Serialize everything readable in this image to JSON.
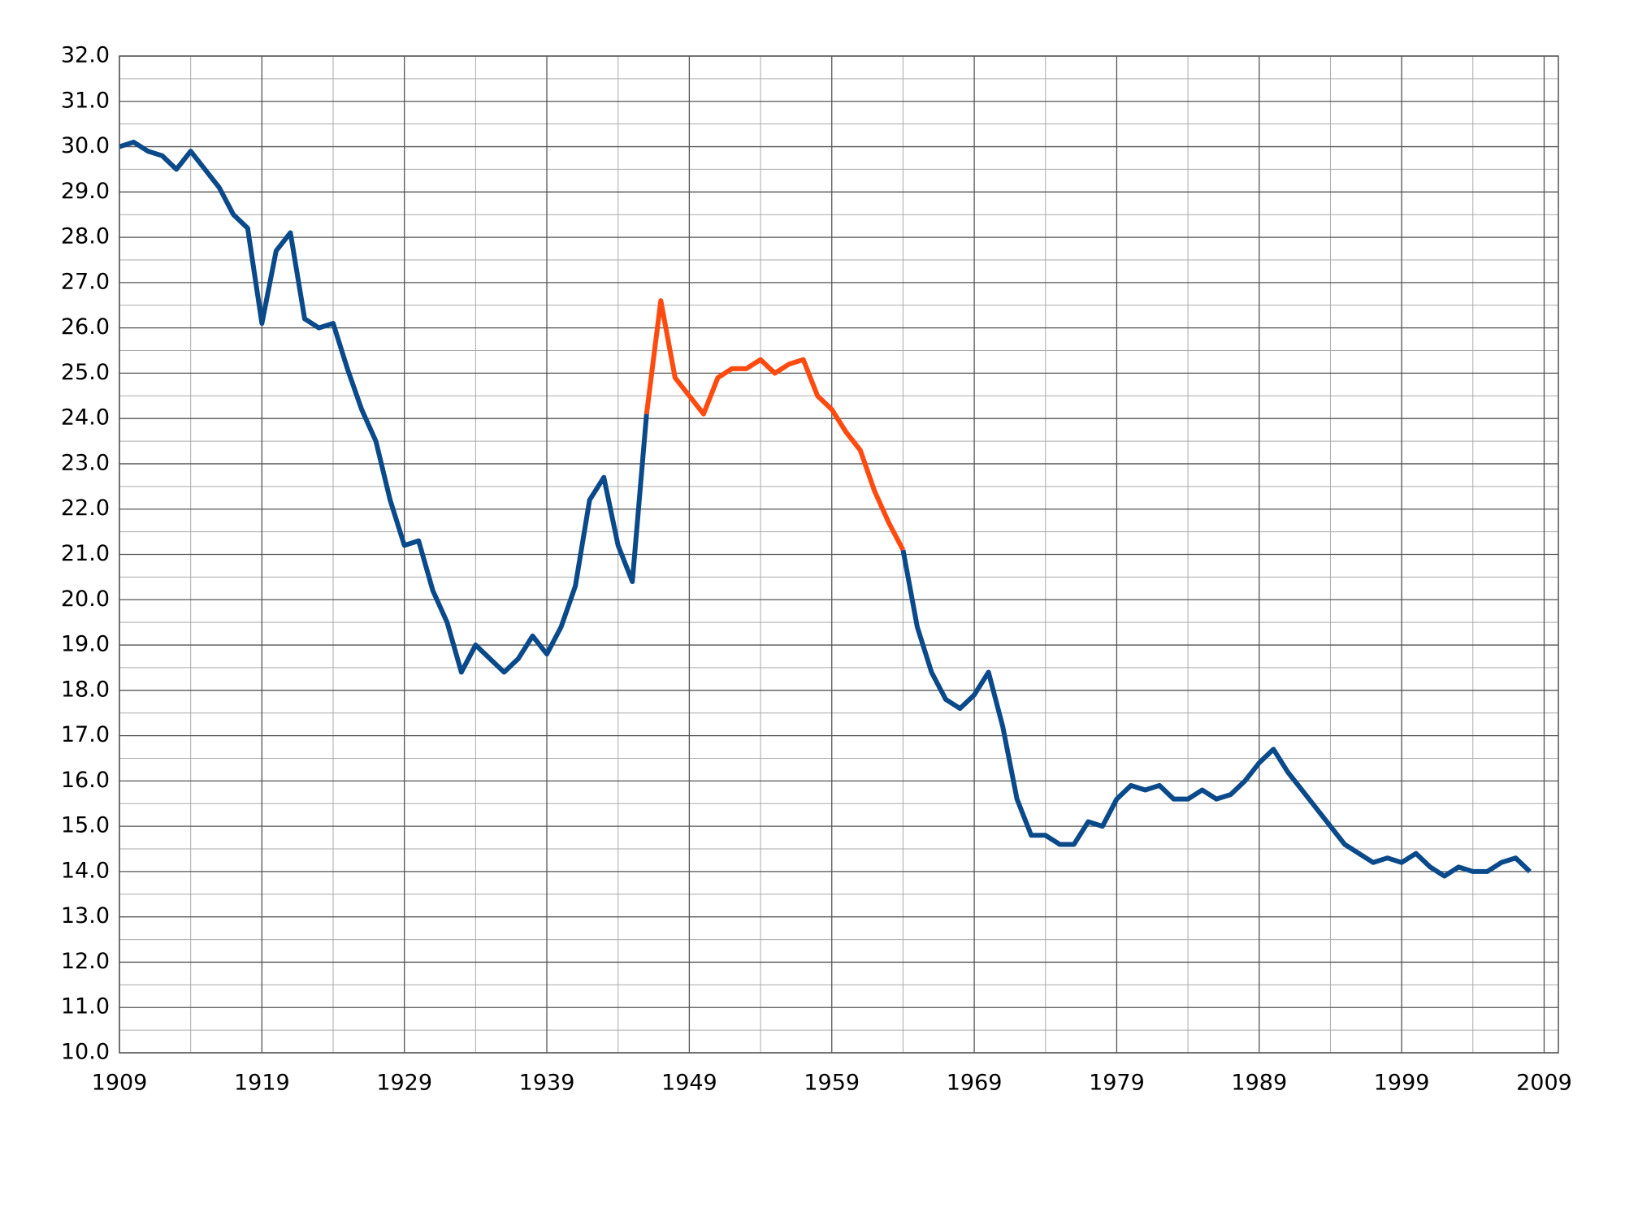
{
  "chart_data": {
    "type": "line",
    "x": [
      1909,
      1910,
      1911,
      1912,
      1913,
      1914,
      1915,
      1916,
      1917,
      1918,
      1919,
      1920,
      1921,
      1922,
      1923,
      1924,
      1925,
      1926,
      1927,
      1928,
      1929,
      1930,
      1931,
      1932,
      1933,
      1934,
      1935,
      1936,
      1937,
      1938,
      1939,
      1940,
      1941,
      1942,
      1943,
      1944,
      1945,
      1946,
      1947,
      1948,
      1949,
      1950,
      1951,
      1952,
      1953,
      1954,
      1955,
      1956,
      1957,
      1958,
      1959,
      1960,
      1961,
      1962,
      1963,
      1964,
      1965,
      1966,
      1967,
      1968,
      1969,
      1970,
      1971,
      1972,
      1973,
      1974,
      1975,
      1976,
      1977,
      1978,
      1979,
      1980,
      1981,
      1982,
      1983,
      1984,
      1985,
      1986,
      1987,
      1988,
      1989,
      1990,
      1991,
      1992,
      1993,
      1994,
      1995,
      1996,
      1997,
      1998,
      1999,
      2000,
      2001,
      2002,
      2003,
      2004,
      2005,
      2006,
      2007,
      2008
    ],
    "series": [
      {
        "color": "#0a4a8a",
        "values": [
          30.0,
          30.1,
          29.9,
          29.8,
          29.5,
          29.9,
          29.5,
          29.1,
          28.5,
          28.2,
          26.1,
          27.7,
          28.1,
          26.2,
          26.0,
          26.1,
          25.1,
          24.2,
          23.5,
          22.2,
          21.2,
          21.3,
          20.2,
          19.5,
          18.4,
          19.0,
          18.7,
          18.4,
          18.7,
          19.2,
          18.8,
          19.4,
          20.3,
          22.2,
          22.7,
          21.2,
          20.4,
          24.1,
          null,
          null,
          null,
          null,
          null,
          null,
          null,
          null,
          null,
          null,
          null,
          null,
          null,
          null,
          null,
          null,
          null,
          21.1,
          19.4,
          18.4,
          17.8,
          17.6,
          17.9,
          18.4,
          17.2,
          15.6,
          14.8,
          14.8,
          14.6,
          14.6,
          15.1,
          15.0,
          15.6,
          15.9,
          15.8,
          15.9,
          15.6,
          15.6,
          15.8,
          15.6,
          15.7,
          16.0,
          16.4,
          16.7,
          16.2,
          15.8,
          15.4,
          15.0,
          14.6,
          14.4,
          14.2,
          14.3,
          14.2,
          14.4,
          14.1,
          13.9,
          14.1,
          14.0,
          14.0,
          14.2,
          14.3,
          14.0
        ]
      },
      {
        "color": "#ff4a10",
        "values": [
          null,
          null,
          null,
          null,
          null,
          null,
          null,
          null,
          null,
          null,
          null,
          null,
          null,
          null,
          null,
          null,
          null,
          null,
          null,
          null,
          null,
          null,
          null,
          null,
          null,
          null,
          null,
          null,
          null,
          null,
          null,
          null,
          null,
          null,
          null,
          null,
          null,
          24.1,
          26.6,
          24.9,
          24.5,
          24.1,
          24.9,
          25.1,
          25.1,
          25.3,
          25.0,
          25.2,
          25.3,
          24.5,
          24.2,
          23.7,
          23.3,
          22.4,
          21.7,
          21.1,
          null,
          null,
          null,
          null,
          null,
          null,
          null,
          null,
          null,
          null,
          null,
          null,
          null,
          null,
          null,
          null,
          null,
          null,
          null,
          null,
          null,
          null,
          null,
          null,
          null,
          null,
          null,
          null,
          null,
          null,
          null,
          null,
          null,
          null,
          null,
          null,
          null,
          null,
          null,
          null,
          null,
          null,
          null,
          null
        ]
      }
    ],
    "xlim": [
      1909,
      2010
    ],
    "ylim": [
      10,
      32
    ],
    "xticks": [
      1909,
      1919,
      1929,
      1939,
      1949,
      1959,
      1969,
      1979,
      1989,
      1999,
      2009
    ],
    "yticks": [
      {
        "value": 10,
        "label": "10.0"
      },
      {
        "value": 11,
        "label": "11.0"
      },
      {
        "value": 12,
        "label": "12.0"
      },
      {
        "value": 13,
        "label": "13.0"
      },
      {
        "value": 14,
        "label": "14.0"
      },
      {
        "value": 15,
        "label": "15.0"
      },
      {
        "value": 16,
        "label": "16.0"
      },
      {
        "value": 17,
        "label": "17.0"
      },
      {
        "value": 18,
        "label": "18.0"
      },
      {
        "value": 19,
        "label": "19.0"
      },
      {
        "value": 20,
        "label": "20.0"
      },
      {
        "value": 21,
        "label": "21.0"
      },
      {
        "value": 22,
        "label": "22.0"
      },
      {
        "value": 23,
        "label": "23.0"
      },
      {
        "value": 24,
        "label": "24.0"
      },
      {
        "value": 25,
        "label": "25.0"
      },
      {
        "value": 26,
        "label": "26.0"
      },
      {
        "value": 27,
        "label": "27.0"
      },
      {
        "value": 28,
        "label": "28.0"
      },
      {
        "value": 29,
        "label": "29.0"
      },
      {
        "value": 30,
        "label": "30.0"
      },
      {
        "value": 31,
        "label": "31.0"
      },
      {
        "value": 32,
        "label": "32.0"
      }
    ],
    "xminorticks": [
      1914,
      1924,
      1934,
      1944,
      1954,
      1964,
      1974,
      1984,
      1994,
      2004
    ],
    "yminorticks": [
      10.5,
      11.5,
      12.5,
      13.5,
      14.5,
      15.5,
      16.5,
      17.5,
      18.5,
      19.5,
      20.5,
      21.5,
      22.5,
      23.5,
      24.5,
      25.5,
      26.5,
      27.5,
      28.5,
      29.5,
      30.5,
      31.5
    ],
    "grid": true
  }
}
